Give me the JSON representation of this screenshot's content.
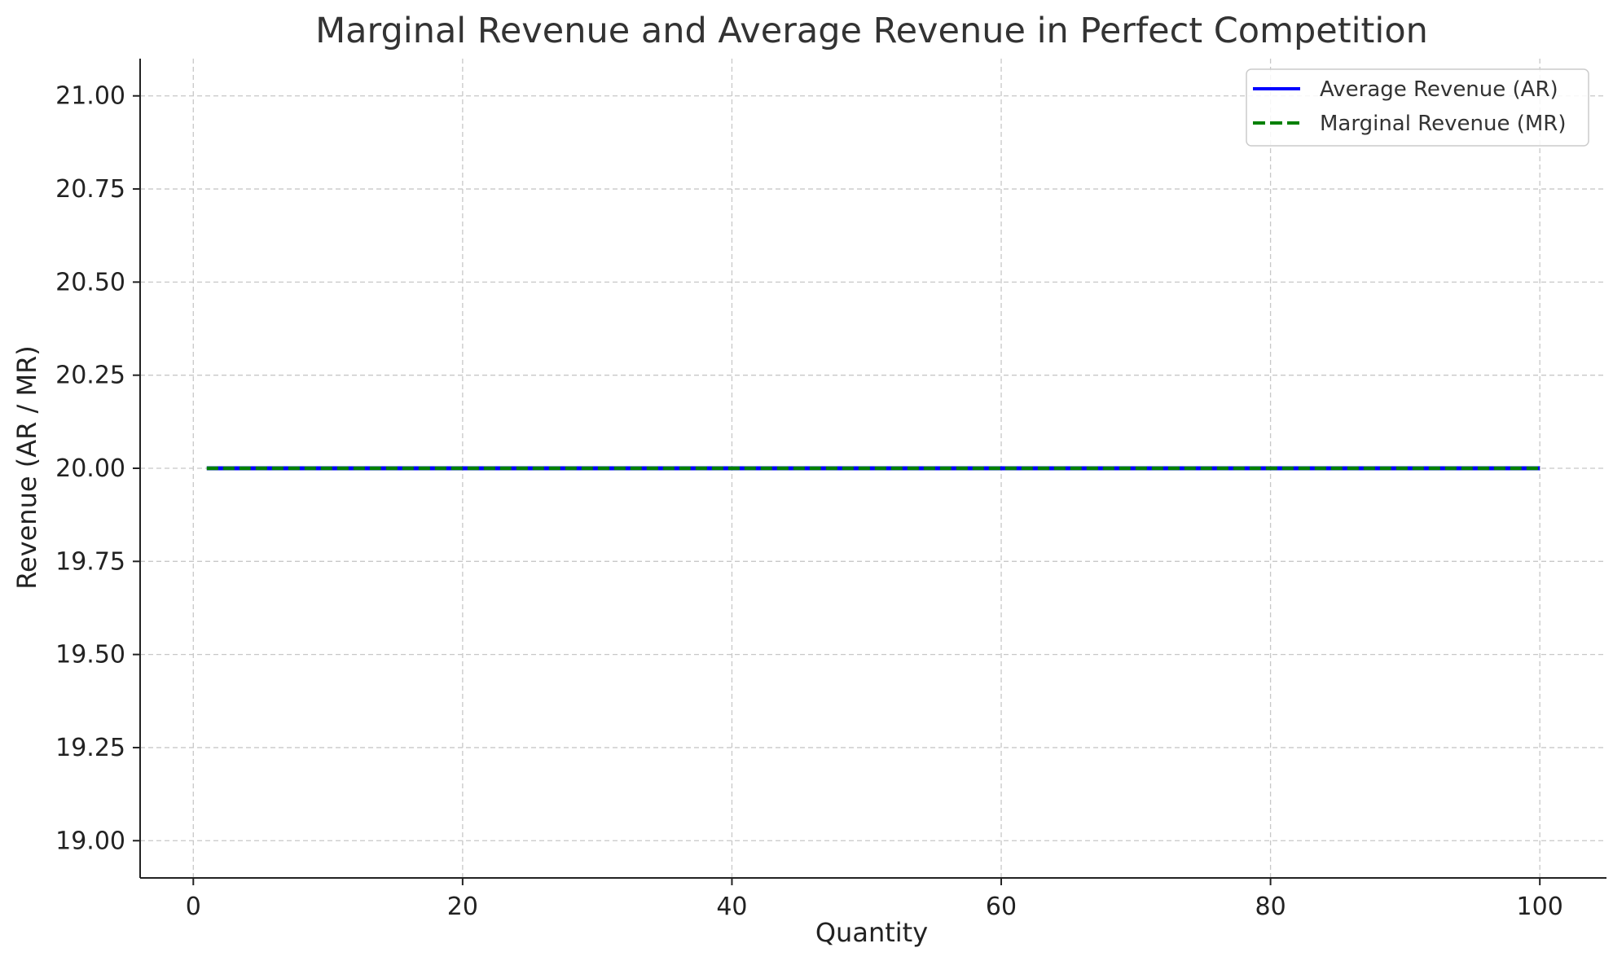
{
  "chart_data": {
    "type": "line",
    "title": "Marginal Revenue and Average Revenue in Perfect Competition",
    "xlabel": "Quantity",
    "ylabel": "Revenue (AR / MR)",
    "xlim": [
      -3.95,
      104.95
    ],
    "ylim": [
      18.9,
      21.1
    ],
    "xticks": [
      0,
      20,
      40,
      60,
      80,
      100
    ],
    "xtick_labels": [
      "0",
      "20",
      "40",
      "60",
      "80",
      "100"
    ],
    "yticks": [
      19.0,
      19.25,
      19.5,
      19.75,
      20.0,
      20.25,
      20.5,
      20.75,
      21.0
    ],
    "ytick_labels": [
      "19.00",
      "19.25",
      "19.50",
      "19.75",
      "20.00",
      "20.25",
      "20.50",
      "20.75",
      "21.00"
    ],
    "grid": true,
    "legend_position": "top-right",
    "series": [
      {
        "name": "Average Revenue (AR)",
        "x": [
          1,
          100
        ],
        "y": [
          20,
          20
        ],
        "color": "#0000ff",
        "style": "solid"
      },
      {
        "name": "Marginal Revenue (MR)",
        "x": [
          1,
          100
        ],
        "y": [
          20,
          20
        ],
        "color": "#008000",
        "style": "dashed"
      }
    ]
  }
}
